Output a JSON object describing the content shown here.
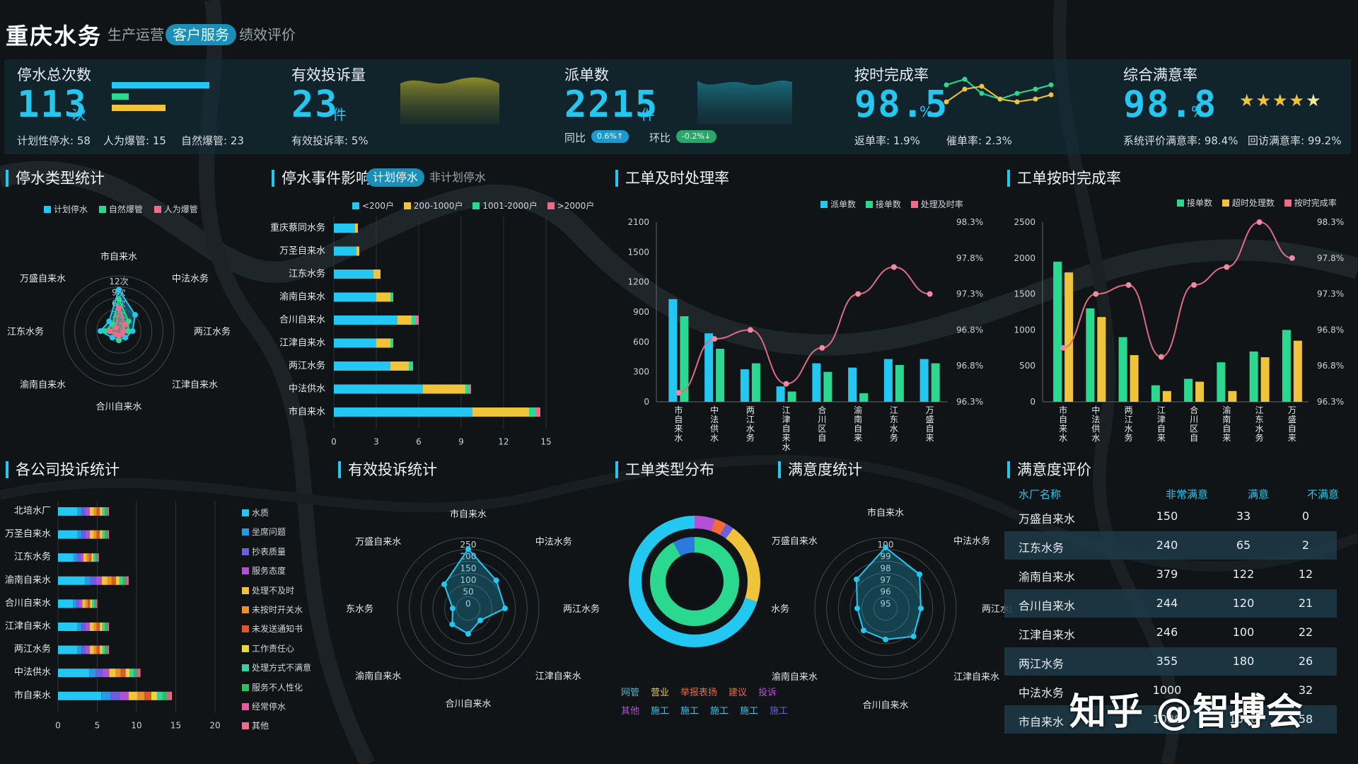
{
  "header": {
    "brand": "重庆水务",
    "tabs": [
      {
        "label": "生产运营"
      },
      {
        "label": "客户服务"
      },
      {
        "label": "绩效评价"
      }
    ],
    "active_tab": "客户服务"
  },
  "kpi": {
    "outage": {
      "title": "停水总次数",
      "value": "113",
      "unit": "次",
      "bar_legend": [
        58,
        15,
        23
      ],
      "items": [
        "计划性停水: 58",
        "人为爆管: 15",
        "自然爆管: 23"
      ]
    },
    "complaints": {
      "title": "有效投诉量",
      "value": "23",
      "unit": "件",
      "items": [
        "有效投诉率: 5%"
      ]
    },
    "dispatch": {
      "title": "派单数",
      "value": "2215",
      "unit": "件",
      "yoy_label": "同比",
      "yoy": "0.6%↑",
      "mom_label": "环比",
      "mom": "-0.2%↓"
    },
    "ontime": {
      "title": "按时完成率",
      "value": "98.5",
      "unit": "%",
      "items": [
        "返单率: 1.9%",
        "催单率: 2.3%"
      ]
    },
    "satisfaction": {
      "title": "综合满意率",
      "value": "98.8",
      "unit": "%",
      "stars": 5,
      "items": [
        "系统评价满意率: 98.4%",
        "回访满意率: 99.2%"
      ]
    }
  },
  "sections": {
    "outage_type": {
      "title": "停水类型统计",
      "legend": [
        "计划停水",
        "自然爆管",
        "人为爆管"
      ],
      "axes": [
        "市自来水",
        "中法水务",
        "两江水务",
        "江津自来水",
        "合川自来水",
        "渝南自来水",
        "江东水务",
        "万盛自来水"
      ],
      "rings": [
        "12次",
        "9次",
        "6次",
        "3次",
        "0次"
      ],
      "series": [
        {
          "values": [
            9,
            5,
            3,
            2,
            2,
            2,
            4,
            3
          ]
        },
        {
          "values": [
            7,
            3,
            2,
            1,
            2,
            1,
            3,
            2
          ]
        },
        {
          "values": [
            5,
            2,
            1,
            1,
            1,
            1,
            2,
            1
          ]
        }
      ],
      "max": 12
    },
    "outage_impact": {
      "title": "停水事件影响",
      "tabs": [
        "计划停水",
        "非计划停水"
      ],
      "legend": [
        "<200户",
        "200-1000户",
        "1001-2000户",
        ">2000户"
      ],
      "categories": [
        "重庆蔡同水务",
        "万圣自来水",
        "江东水务",
        "渝南自来水",
        "合川自来水",
        "江津自来水",
        "两江水务",
        "中法供水",
        "市自来水"
      ],
      "values": [
        [
          1.5,
          0.2,
          0,
          0
        ],
        [
          1.6,
          0.2,
          0,
          0
        ],
        [
          2.8,
          0.5,
          0,
          0
        ],
        [
          3,
          1,
          0.2,
          0
        ],
        [
          4.5,
          1,
          0.3,
          0.2
        ],
        [
          3,
          1,
          0.2,
          0
        ],
        [
          4,
          1.3,
          0.3,
          0
        ],
        [
          6.3,
          3,
          0.3,
          0.1
        ],
        [
          9.8,
          4,
          0.5,
          0.3
        ]
      ],
      "xticks": [
        "0",
        "3",
        "6",
        "9",
        "12",
        "15"
      ],
      "xmax": 15
    },
    "ticket_rate": {
      "title": "工单及时处理率",
      "legend": [
        "派单数",
        "接单数",
        "处理及时率"
      ],
      "categories": [
        "市自来水",
        "中法供水",
        "两江水务",
        "江津自来水",
        "合川区自",
        "渝南自来",
        "江东水务",
        "万盛自来"
      ],
      "dispatch": [
        1200,
        800,
        380,
        180,
        450,
        400,
        500,
        500
      ],
      "accept": [
        1000,
        620,
        450,
        120,
        350,
        100,
        430,
        450
      ],
      "rate": [
        96.4,
        97.0,
        97.1,
        96.5,
        96.9,
        97.5,
        97.8,
        97.5
      ],
      "yticks": [
        "2100",
        "1500",
        "1200",
        "900",
        "600",
        "300",
        "0"
      ],
      "rticks": [
        "98.3%",
        "97.8%",
        "97.3%",
        "96.8%",
        "96.8%",
        "96.3%"
      ]
    },
    "ticket_ontime": {
      "title": "工单按时完成率",
      "legend": [
        "接单数",
        "超时处理数",
        "按时完成率"
      ],
      "categories": [
        "市自来水",
        "中法供水",
        "两江水务",
        "江津自来",
        "合川区自",
        "渝南自来",
        "江东水务",
        "万盛自来"
      ],
      "accept": [
        1950,
        1300,
        900,
        230,
        320,
        550,
        700,
        1000
      ],
      "overtime": [
        1800,
        1180,
        650,
        150,
        280,
        150,
        620,
        850
      ],
      "rate": [
        96.9,
        97.5,
        97.6,
        96.8,
        97.6,
        97.8,
        98.3,
        97.9
      ],
      "yticks": [
        "2500",
        "2000",
        "1500",
        "1000",
        "500",
        "0"
      ],
      "rticks": [
        "98.3%",
        "97.8%",
        "97.3%",
        "96.8%",
        "96.8%",
        "96.3%"
      ]
    },
    "company_complaints": {
      "title": "各公司投诉统计",
      "categories": [
        "北培水厂",
        "万圣自来水",
        "江东水务",
        "渝南自来水",
        "合川自来水",
        "江津自来水",
        "两江水务",
        "中法供水",
        "市自来水"
      ],
      "totals": [
        6.5,
        6.5,
        5.2,
        9,
        5,
        6.5,
        6.5,
        10.5,
        14.5
      ],
      "xticks": [
        "0",
        "5",
        "10",
        "15",
        "20"
      ],
      "xmax": 20,
      "legend": [
        "水质",
        "坐席问题",
        "抄表质量",
        "服务态度",
        "处理不及时",
        "未按时开关水",
        "未发送通知书",
        "工作责任心",
        "处理方式不满意",
        "服务不人性化",
        "经常停水",
        "其他"
      ],
      "colors": [
        "#22c7f2",
        "#2a9ae0",
        "#6a5fe0",
        "#b44fd8",
        "#f0c43a",
        "#e8902a",
        "#d85a2a",
        "#e8d63a",
        "#3ad0a0",
        "#2ac05a",
        "#e85aa0",
        "#f06a8a"
      ]
    },
    "valid_complaints": {
      "title": "有效投诉统计",
      "axes": [
        "市自来水",
        "中法水务",
        "两江水务",
        "江津自来水",
        "合川自来水",
        "渝南自来水",
        "江东水务",
        "万盛自来水"
      ],
      "rings": [
        "250",
        "200",
        "150",
        "100",
        "50",
        "0"
      ],
      "values": [
        210,
        140,
        130,
        60,
        90,
        80,
        55,
        120
      ],
      "max": 250
    },
    "ticket_type": {
      "title": "工单类型分布",
      "legend_top": [
        "网管",
        "营业",
        "举报表扬",
        "建议",
        "投诉"
      ],
      "legend_bottom": [
        "其他",
        "施工",
        "施工",
        "施工",
        "施工",
        "施工"
      ],
      "outer": [
        {
          "v": 5,
          "c": "#b44fd8"
        },
        {
          "v": 3,
          "c": "#f06a3a"
        },
        {
          "v": 2,
          "c": "#6a5fe0"
        },
        {
          "v": 20,
          "c": "#f0c43a"
        },
        {
          "v": 70,
          "c": "#22c7f2"
        }
      ],
      "inner": [
        {
          "v": 92,
          "c": "#2ad890"
        },
        {
          "v": 8,
          "c": "#2a7ae0"
        }
      ]
    },
    "satisfaction_stats": {
      "title": "满意度统计",
      "axes": [
        "市自来水",
        "中法水务",
        "两江水务",
        "江津自来水",
        "合川自来水",
        "渝南自来水",
        "江东水务",
        "万盛自来水"
      ],
      "rings": [
        "100",
        "99",
        "98",
        "97",
        "96",
        "95"
      ],
      "values": [
        99.3,
        98.4,
        97.5,
        97.8,
        97.2,
        97.2,
        97.0,
        97.9
      ],
      "min": 95,
      "max": 100
    },
    "satisfaction_eval": {
      "title": "满意度评价",
      "columns": [
        "水厂名称",
        "非常满意",
        "满意",
        "不满意"
      ],
      "rows": [
        [
          "万盛自来水",
          "150",
          "33",
          "0"
        ],
        [
          "江东水务",
          "240",
          "65",
          "2"
        ],
        [
          "渝南自来水",
          "379",
          "122",
          "12"
        ],
        [
          "合川自来水",
          "244",
          "120",
          "21"
        ],
        [
          "江津自来水",
          "246",
          "100",
          "22"
        ],
        [
          "两江水务",
          "355",
          "180",
          "26"
        ],
        [
          "中法水务",
          "1000",
          "",
          "32"
        ],
        [
          "市自来水",
          "1000",
          "1000",
          "58"
        ]
      ]
    }
  },
  "watermark": {
    "text": "知乎 @智搏会"
  }
}
